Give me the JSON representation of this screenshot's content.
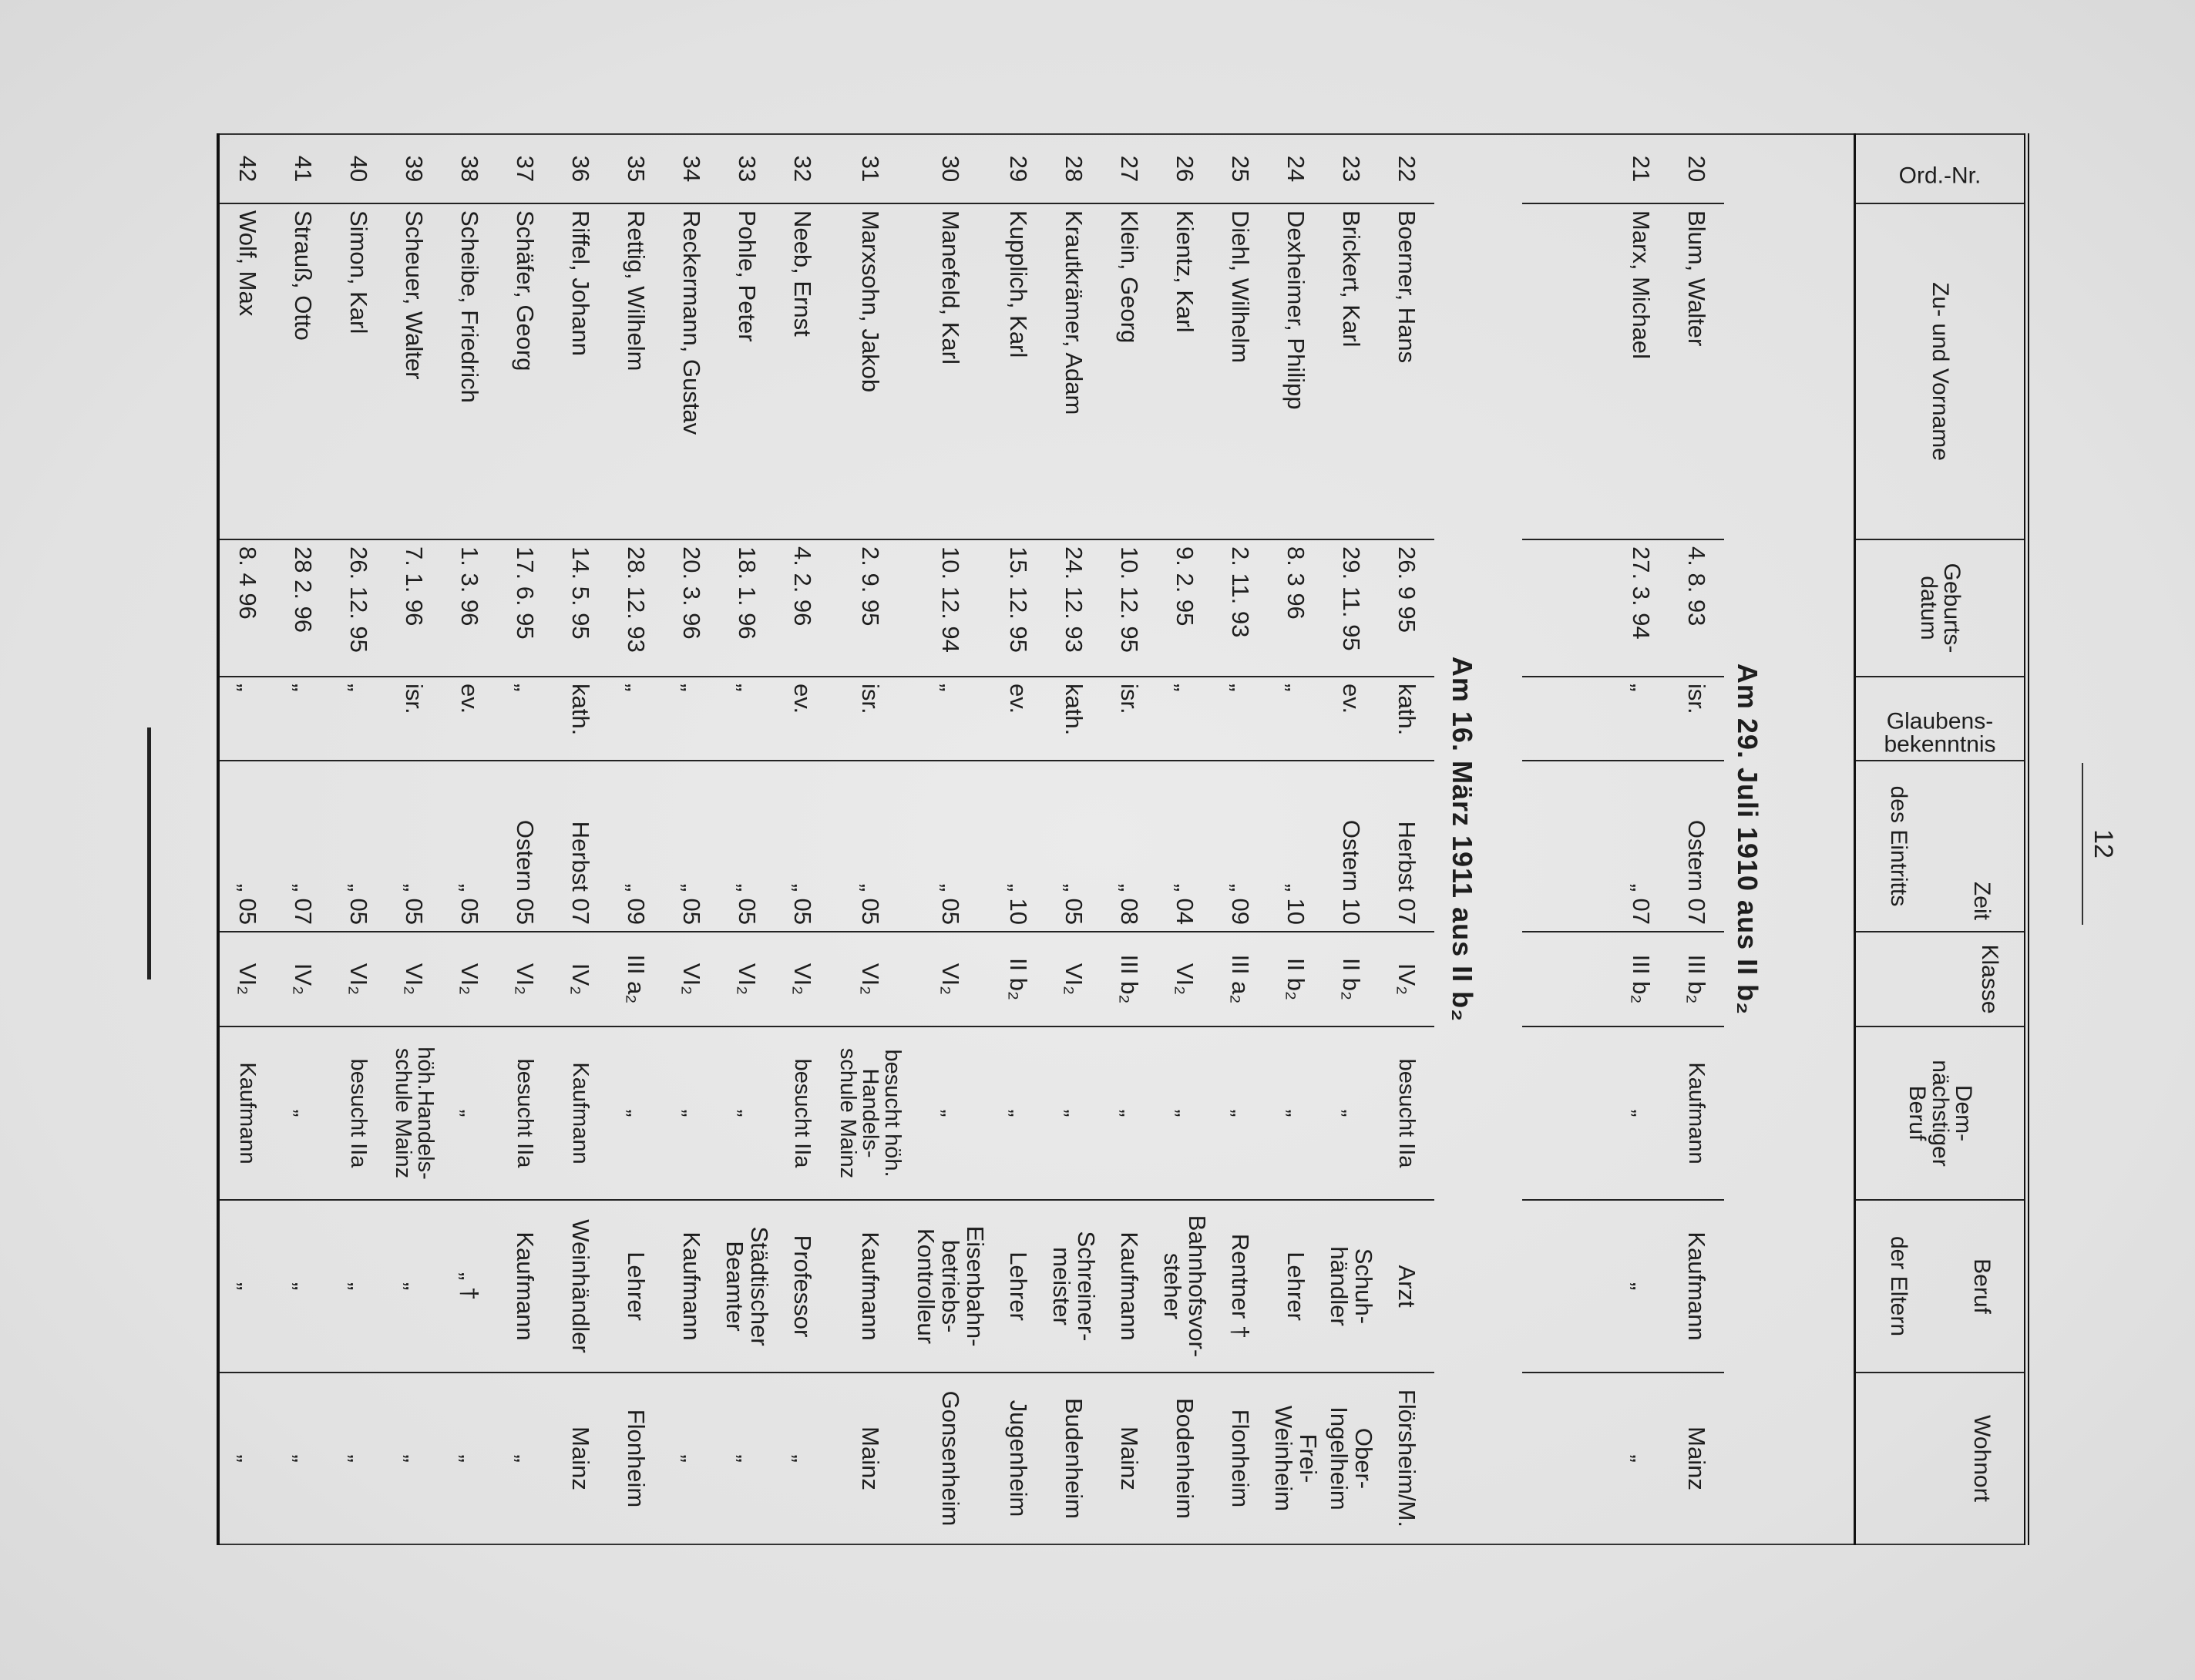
{
  "page_number": "12",
  "header": {
    "ord_nr": "Ord.-Nr.",
    "name": "Zu- und Vorname",
    "birth": "Geburts-\ndatum",
    "religion": "Glaubens-\nbekenntnis",
    "entry_time": "Zeit",
    "entry_group": "des Eintritts",
    "entry_class": "Klasse",
    "future_job": "Dem-\nnächstiger\nBeruf",
    "parents_job": "Beruf",
    "parents_group": "der Eltern",
    "parents_residence": "Wohnort"
  },
  "sections": [
    {
      "heading": "Am 29. Juli 1910 aus II b₂",
      "rows": [
        {
          "nr": "20",
          "name": "Blum, Walter",
          "birth": "4. 8. 93",
          "religion": "isr.",
          "time": "Ostern 07",
          "class": "III b₂",
          "job": "Kaufmann",
          "parent_job": "Kaufmann",
          "residence": "Mainz"
        },
        {
          "nr": "21",
          "name": "Marx, Michael",
          "birth": "27. 3. 94",
          "religion": "„",
          "time": "„ 07",
          "class": "III b₂",
          "job": "„",
          "parent_job": "„",
          "residence": "„"
        }
      ]
    },
    {
      "heading": "Am 16. März 1911 aus II b₂",
      "rows": [
        {
          "nr": "22",
          "name": "Boerner, Hans",
          "birth": "26. 9 95",
          "religion": "kath.",
          "time": "Herbst 07",
          "class": "IV₂",
          "job": "besucht IIa",
          "parent_job": "Arzt",
          "residence": "Flörsheim/M."
        },
        {
          "nr": "23",
          "name": "Brickert, Karl",
          "birth": "29. 11. 95",
          "religion": "ev.",
          "time": "Ostern 10",
          "class": "II b₂",
          "job": "„",
          "parent_job": "Schuh-\nhändler",
          "residence": "Ober-\nIngelheim"
        },
        {
          "nr": "24",
          "name": "Dexheimer, Philipp",
          "birth": "8. 3 96",
          "religion": "„",
          "time": "„ 10",
          "class": "II b₂",
          "job": "„",
          "parent_job": "Lehrer",
          "residence": "Frei-\nWeinheim"
        },
        {
          "nr": "25",
          "name": "Diehl, Wilhelm",
          "birth": "2. 11. 93",
          "religion": "„",
          "time": "„ 09",
          "class": "III a₂",
          "job": "„",
          "parent_job": "Rentner †",
          "residence": "Flonheim"
        },
        {
          "nr": "26",
          "name": "Kientz, Karl",
          "birth": "9. 2. 95",
          "religion": "„",
          "time": "„ 04",
          "class": "VI₂",
          "job": "„",
          "parent_job": "Bahnhofsvor-\nsteher",
          "residence": "Bodenheim"
        },
        {
          "nr": "27",
          "name": "Klein, Georg",
          "birth": "10. 12. 95",
          "religion": "isr.",
          "time": "„ 08",
          "class": "III b₂",
          "job": "„",
          "parent_job": "Kaufmann",
          "residence": "Mainz"
        },
        {
          "nr": "28",
          "name": "Krautkrämer, Adam",
          "birth": "24. 12. 93",
          "religion": "kath.",
          "time": "„ 05",
          "class": "VI₂",
          "job": "„",
          "parent_job": "Schreiner-\nmeister",
          "residence": "Budenheim"
        },
        {
          "nr": "29",
          "name": "Kupplich, Karl",
          "birth": "15. 12. 95",
          "religion": "ev.",
          "time": "„ 10",
          "class": "II b₂",
          "job": "„",
          "parent_job": "Lehrer",
          "residence": "Jugenheim"
        },
        {
          "nr": "30",
          "name": "Manefeld, Karl",
          "birth": "10. 12. 94",
          "religion": "„",
          "time": "„ 05",
          "class": "VI₂",
          "job": "„",
          "parent_job": "Eisenbahn-\nbetriebs-\nKontrolleur",
          "residence": "Gonsenheim"
        },
        {
          "nr": "31",
          "name": "Marxsohn, Jakob",
          "birth": "2. 9. 95",
          "religion": "isr.",
          "time": "„ 05",
          "class": "VI₂",
          "job": "besucht höh.\nHandels-\nschule Mainz",
          "parent_job": "Kaufmann",
          "residence": "Mainz"
        },
        {
          "nr": "32",
          "name": "Neeb, Ernst",
          "birth": "4. 2. 96",
          "religion": "ev.",
          "time": "„ 05",
          "class": "VI₂",
          "job": "besucht IIa",
          "parent_job": "Professor",
          "residence": "„"
        },
        {
          "nr": "33",
          "name": "Pohle, Peter",
          "birth": "18. 1. 96",
          "religion": "„",
          "time": "„ 05",
          "class": "VI₂",
          "job": "„",
          "parent_job": "Städtischer\nBeamter",
          "residence": "„"
        },
        {
          "nr": "34",
          "name": "Reckermann, Gustav",
          "birth": "20. 3. 96",
          "religion": "„",
          "time": "„ 05",
          "class": "VI₂",
          "job": "„",
          "parent_job": "Kaufmann",
          "residence": "„"
        },
        {
          "nr": "35",
          "name": "Rettig, Wilhelm",
          "birth": "28. 12. 93",
          "religion": "„",
          "time": "„ 09",
          "class": "III a₂",
          "job": "„",
          "parent_job": "Lehrer",
          "residence": "Flonheim"
        },
        {
          "nr": "36",
          "name": "Riffel, Johann",
          "birth": "14. 5. 95",
          "religion": "kath.",
          "time": "Herbst 07",
          "class": "IV₂",
          "job": "Kaufmann",
          "parent_job": "Weinhändler",
          "residence": "Mainz"
        },
        {
          "nr": "37",
          "name": "Schäfer, Georg",
          "birth": "17. 6. 95",
          "religion": "„",
          "time": "Ostern 05",
          "class": "VI₂",
          "job": "besucht IIa",
          "parent_job": "Kaufmann",
          "residence": "„"
        },
        {
          "nr": "38",
          "name": "Scheibe, Friedrich",
          "birth": "1. 3. 96",
          "religion": "ev.",
          "time": "„ 05",
          "class": "VI₂",
          "job": "„",
          "parent_job": "„ †",
          "residence": "„"
        },
        {
          "nr": "39",
          "name": "Scheuer, Walter",
          "birth": "7. 1. 96",
          "religion": "isr.",
          "time": "„ 05",
          "class": "VI₂",
          "job": "höh.Handels-\nschule Mainz",
          "parent_job": "„",
          "residence": "„"
        },
        {
          "nr": "40",
          "name": "Simon, Karl",
          "birth": "26. 12. 95",
          "religion": "„",
          "time": "„ 05",
          "class": "VI₂",
          "job": "besucht IIa",
          "parent_job": "„",
          "residence": "„"
        },
        {
          "nr": "41",
          "name": "Strauß, Otto",
          "birth": "28 2. 96",
          "religion": "„",
          "time": "„ 07",
          "class": "IV₂",
          "job": "„",
          "parent_job": "„",
          "residence": "„"
        },
        {
          "nr": "42",
          "name": "Wolf, Max",
          "birth": "8. 4 96",
          "religion": "„",
          "time": "„ 05",
          "class": "VI₂",
          "job": "Kaufmann",
          "parent_job": "„",
          "residence": "„"
        }
      ]
    }
  ]
}
